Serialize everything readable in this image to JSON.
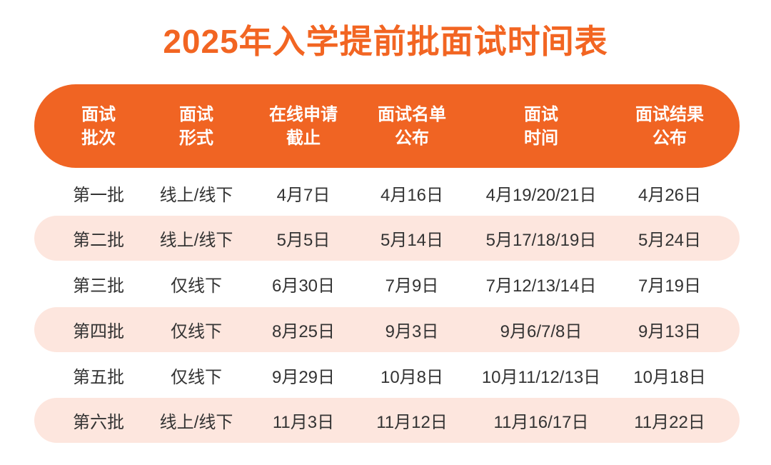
{
  "title": "2025年入学提前批面试时间表",
  "colors": {
    "accent": "#F06423",
    "row_shade": "#FDE6DE",
    "text": "#333333"
  },
  "table": {
    "headers": [
      [
        "面试",
        "批次"
      ],
      [
        "面试",
        "形式"
      ],
      [
        "在线申请",
        "截止"
      ],
      [
        "面试名单",
        "公布"
      ],
      [
        "面试",
        "时间"
      ],
      [
        "面试结果",
        "公布"
      ]
    ],
    "rows": [
      [
        "第一批",
        "线上/线下",
        "4月7日",
        "4月16日",
        "4月19/20/21日",
        "4月26日"
      ],
      [
        "第二批",
        "线上/线下",
        "5月5日",
        "5月14日",
        "5月17/18/19日",
        "5月24日"
      ],
      [
        "第三批",
        "仅线下",
        "6月30日",
        "7月9日",
        "7月12/13/14日",
        "7月19日"
      ],
      [
        "第四批",
        "仅线下",
        "8月25日",
        "9月3日",
        "9月6/7/8日",
        "9月13日"
      ],
      [
        "第五批",
        "仅线下",
        "9月29日",
        "10月8日",
        "10月11/12/13日",
        "10月18日"
      ],
      [
        "第六批",
        "线上/线下",
        "11月3日",
        "11月12日",
        "11月16/17日",
        "11月22日"
      ]
    ]
  }
}
